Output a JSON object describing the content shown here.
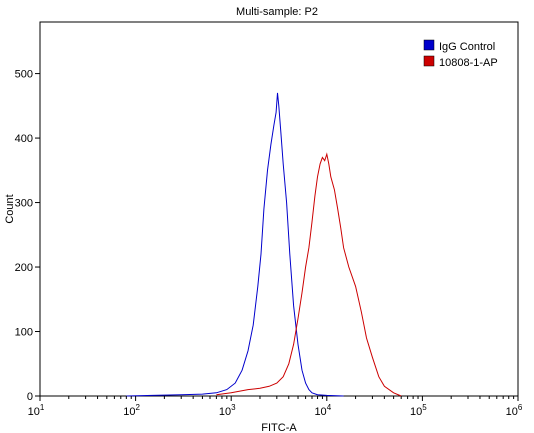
{
  "chart_data": {
    "type": "line",
    "title": "Multi-sample: P2",
    "xlabel": "FITC-A",
    "ylabel": "Count",
    "x_scale": "log",
    "xlim": [
      10,
      1000000
    ],
    "ylim": [
      0,
      580
    ],
    "x_ticks": [
      {
        "value": 10,
        "base": "10",
        "exp": "1"
      },
      {
        "value": 100,
        "base": "10",
        "exp": "2"
      },
      {
        "value": 1000,
        "base": "10",
        "exp": "3"
      },
      {
        "value": 10000,
        "base": "10",
        "exp": "4"
      },
      {
        "value": 100000,
        "base": "10",
        "exp": "5"
      },
      {
        "value": 1000000,
        "base": "10",
        "exp": "6"
      }
    ],
    "y_ticks": [
      0,
      100,
      200,
      300,
      400,
      500
    ],
    "grid": false,
    "legend_position": "top-right",
    "series": [
      {
        "name": "IgG Control",
        "color": "#0000cc",
        "x": [
          80,
          150,
          300,
          500,
          700,
          900,
          1100,
          1300,
          1500,
          1700,
          1900,
          2050,
          2200,
          2400,
          2600,
          2800,
          2950,
          3050,
          3150,
          3300,
          3500,
          3800,
          4100,
          4500,
          5000,
          5500,
          6000,
          6500,
          7000,
          8000,
          10000,
          15000
        ],
        "y": [
          0,
          1,
          2,
          3,
          5,
          10,
          20,
          40,
          70,
          110,
          170,
          220,
          290,
          350,
          390,
          420,
          440,
          470,
          450,
          410,
          360,
          300,
          220,
          140,
          80,
          40,
          20,
          10,
          5,
          2,
          1,
          0
        ]
      },
      {
        "name": "10808-1-AP",
        "color": "#cc0000",
        "x": [
          700,
          1000,
          1500,
          2000,
          2500,
          3000,
          3500,
          4000,
          4500,
          5000,
          5500,
          6000,
          6500,
          7000,
          7500,
          8000,
          8500,
          9000,
          9500,
          10000,
          10500,
          11000,
          12000,
          13000,
          14000,
          15000,
          17000,
          20000,
          23000,
          26000,
          30000,
          35000,
          40000,
          50000,
          60000
        ],
        "y": [
          2,
          5,
          10,
          12,
          15,
          20,
          30,
          50,
          80,
          120,
          160,
          200,
          230,
          270,
          310,
          340,
          360,
          370,
          365,
          375,
          360,
          340,
          320,
          290,
          260,
          230,
          200,
          170,
          130,
          90,
          60,
          30,
          15,
          5,
          0
        ]
      }
    ]
  }
}
